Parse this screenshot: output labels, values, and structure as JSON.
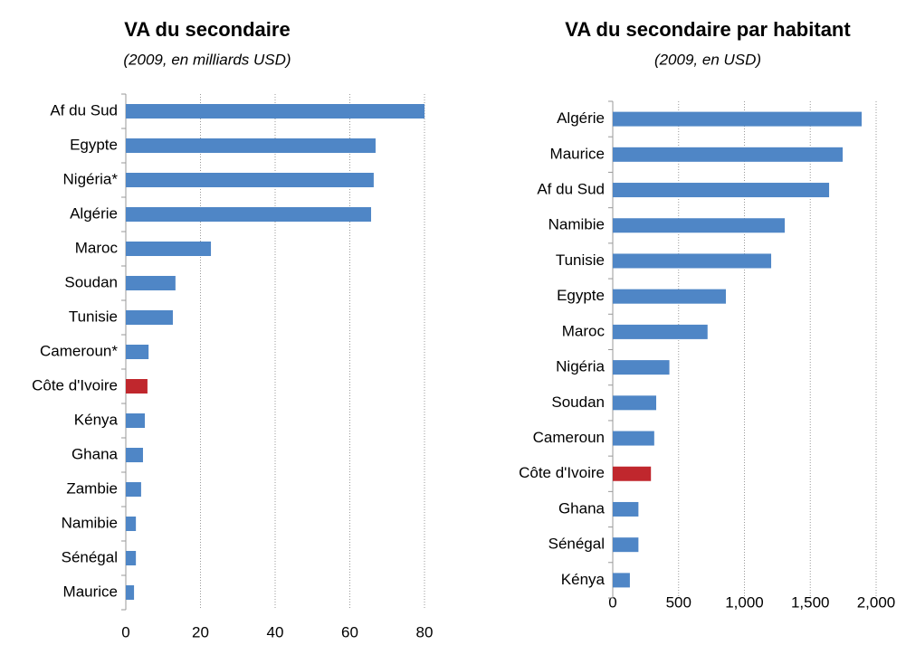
{
  "chart_data": [
    {
      "type": "barh",
      "title": "VA du secondaire",
      "subtitle": "(2009, en milliards USD)",
      "categories": [
        "Af du Sud",
        "Egypte",
        "Nigéria*",
        "Algérie",
        "Maroc",
        "Soudan",
        "Tunisie",
        "Cameroun*",
        "Côte d'Ivoire",
        "Kénya",
        "Ghana",
        "Zambie",
        "Namibie",
        "Sénégal",
        "Maurice"
      ],
      "values": [
        80,
        66.9,
        66.4,
        65.7,
        22.8,
        13.3,
        12.6,
        6.1,
        5.8,
        5.1,
        4.6,
        4.1,
        2.7,
        2.7,
        2.2
      ],
      "colors": [
        "#4f86c6",
        "#4f86c6",
        "#4f86c6",
        "#4f86c6",
        "#4f86c6",
        "#4f86c6",
        "#4f86c6",
        "#4f86c6",
        "#c0272d",
        "#4f86c6",
        "#4f86c6",
        "#4f86c6",
        "#4f86c6",
        "#4f86c6",
        "#4f86c6"
      ],
      "xlim": [
        0,
        80
      ],
      "xticks": [
        0,
        20,
        40,
        60,
        80
      ],
      "grid": true
    },
    {
      "type": "barh",
      "title": "VA du secondaire par habitant",
      "subtitle": "(2009, en USD)",
      "categories": [
        "Algérie",
        "Maurice",
        "Af du Sud",
        "Namibie",
        "Tunisie",
        "Egypte",
        "Maroc",
        "Nigéria",
        "Soudan",
        "Cameroun",
        "Côte d'Ivoire",
        "Ghana",
        "Sénégal",
        "Kénya"
      ],
      "values": [
        1890,
        1746,
        1643,
        1306,
        1203,
        859,
        720,
        430,
        330,
        315,
        290,
        195,
        195,
        130
      ],
      "colors": [
        "#4f86c6",
        "#4f86c6",
        "#4f86c6",
        "#4f86c6",
        "#4f86c6",
        "#4f86c6",
        "#4f86c6",
        "#4f86c6",
        "#4f86c6",
        "#4f86c6",
        "#c0272d",
        "#4f86c6",
        "#4f86c6",
        "#4f86c6"
      ],
      "xlim": [
        0,
        2000
      ],
      "xticks": [
        0,
        500,
        {
          "value": 1000,
          "label": "1,000"
        },
        {
          "value": 1500,
          "label": "1,500"
        },
        {
          "value": 2000,
          "label": "2,000"
        }
      ],
      "grid": true
    }
  ]
}
